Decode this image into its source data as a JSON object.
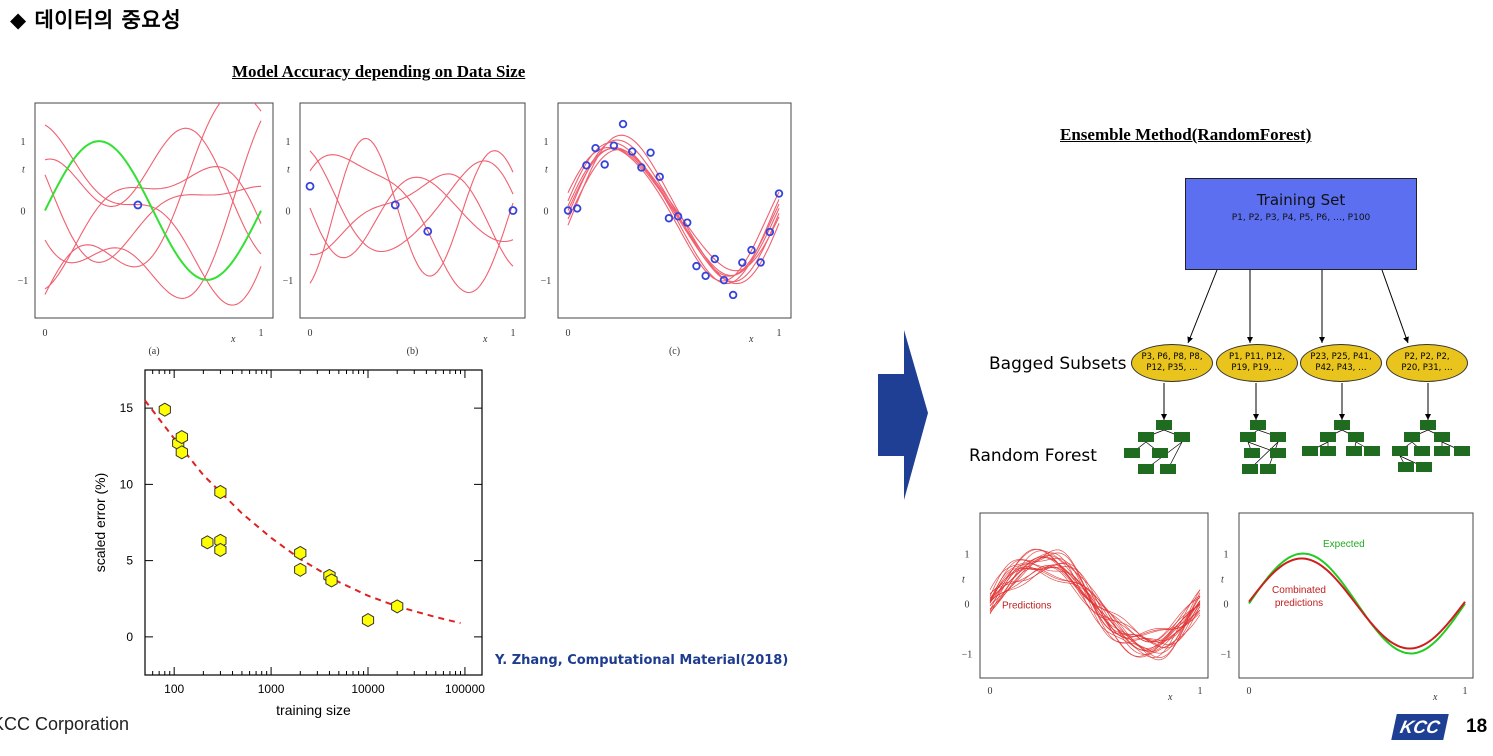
{
  "slide": {
    "title": "◆ 데이터의 중요성",
    "page_number": "18",
    "footer_company": "KCC Corporation",
    "logo_text": "KCC"
  },
  "left_figure": {
    "title": "Model Accuracy depending on Data Size",
    "panels": [
      {
        "caption": "(a)",
        "ytick_labels": [
          "1",
          "0",
          "−1"
        ],
        "xtick_labels": [
          "0",
          "1"
        ],
        "xlabel": "x",
        "ylabel": "t"
      },
      {
        "caption": "(b)",
        "ytick_labels": [
          "1",
          "0",
          "−1"
        ],
        "xtick_labels": [
          "0",
          "1"
        ],
        "xlabel": "x",
        "ylabel": "t"
      },
      {
        "caption": "(c)",
        "ytick_labels": [
          "1",
          "0",
          "−1"
        ],
        "xtick_labels": [
          "0",
          "1"
        ],
        "xlabel": "x",
        "ylabel": "t"
      }
    ],
    "citation": "Y. Zhang, Computational Material(2018)"
  },
  "chart_data": {
    "type": "scatter",
    "title": "",
    "xlabel": "training size",
    "ylabel": "scaled error (%)",
    "x_scale": "log",
    "xlim": [
      50,
      150000
    ],
    "ylim": [
      -2.5,
      17.5
    ],
    "xtick_labels": [
      "100",
      "1000",
      "10000",
      "100000"
    ],
    "xticks": [
      100,
      1000,
      10000,
      100000
    ],
    "ytick_labels": [
      "0",
      "5",
      "10",
      "15"
    ],
    "yticks": [
      0,
      5,
      10,
      15
    ],
    "points": [
      {
        "x": 80,
        "y": 14.9
      },
      {
        "x": 110,
        "y": 12.7
      },
      {
        "x": 120,
        "y": 13.1
      },
      {
        "x": 120,
        "y": 12.1
      },
      {
        "x": 300,
        "y": 9.5
      },
      {
        "x": 220,
        "y": 6.2
      },
      {
        "x": 300,
        "y": 6.3
      },
      {
        "x": 300,
        "y": 5.7
      },
      {
        "x": 2000,
        "y": 5.5
      },
      {
        "x": 2000,
        "y": 4.4
      },
      {
        "x": 4000,
        "y": 4.0
      },
      {
        "x": 4200,
        "y": 3.7
      },
      {
        "x": 10000,
        "y": 1.1
      },
      {
        "x": 20000,
        "y": 2.0
      }
    ],
    "fit_curve": {
      "x": [
        50,
        100,
        200,
        500,
        1000,
        2000,
        5000,
        10000,
        20000,
        50000,
        90000
      ],
      "y": [
        15.5,
        13.0,
        10.6,
        8.1,
        6.5,
        5.1,
        3.6,
        2.7,
        2.0,
        1.3,
        0.9
      ]
    },
    "marker_color": "#ffff00",
    "curve_color": "#dd2222"
  },
  "arrow": {
    "color": "#1f3f94"
  },
  "right_figure": {
    "title": "Ensemble Method(RandomForest)",
    "training_set": {
      "title": "Training Set",
      "items": "P1, P2, P3, P4, P5, P6, …, P100",
      "color": "#5b6ff0"
    },
    "bagged_label": "Bagged Subsets",
    "forest_label": "Random Forest",
    "subsets": [
      {
        "line1": "P3, P6, P8, P8,",
        "line2": "P12, P35, …"
      },
      {
        "line1": "P1, P11, P12,",
        "line2": "P19, P19, …"
      },
      {
        "line1": "P23, P25, P41,",
        "line2": "P42, P43, …"
      },
      {
        "line1": "P2, P2, P2,",
        "line2": "P20, P31, …"
      }
    ],
    "subset_color": "#e8c41c",
    "tree_color": "#1f6b1f",
    "bottom_panels": [
      {
        "annotation": "Predictions",
        "ytick_labels": [
          "1",
          "0",
          "−1"
        ],
        "xtick_labels": [
          "0",
          "1"
        ],
        "xlabel": "x",
        "ylabel": "t"
      },
      {
        "annotation_expected": "Expected",
        "annotation_combined_1": "Combinated",
        "annotation_combined_2": "predictions",
        "ytick_labels": [
          "1",
          "0",
          "−1"
        ],
        "xtick_labels": [
          "0",
          "1"
        ],
        "xlabel": "x",
        "ylabel": "t"
      }
    ]
  }
}
